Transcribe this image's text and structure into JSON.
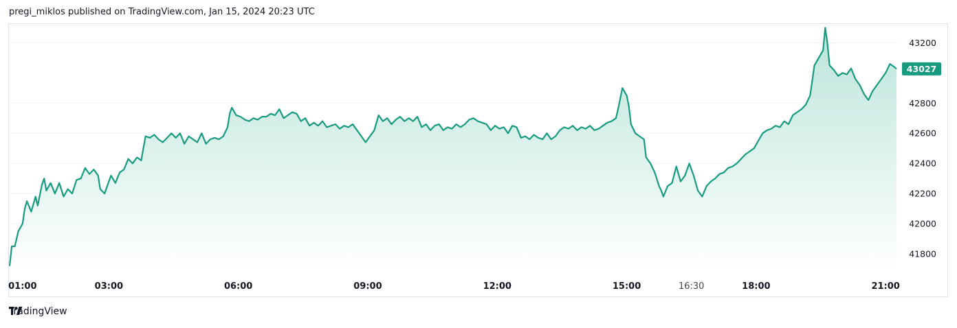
{
  "header": {
    "text": "pregi_miklos published on TradingView.com, Jan 15, 2024 20:23 UTC"
  },
  "footer": {
    "brand": "TradingView"
  },
  "colors": {
    "line": "#169a80",
    "fill_top": "#b8e4d9",
    "fill_bottom": "#ffffff",
    "price_badge": "#169a80",
    "grid": "#f0f3fa",
    "axis_text": "#131722"
  },
  "chart_data": {
    "type": "area",
    "title": "",
    "xlabel": "",
    "ylabel": "",
    "ylim": [
      41700,
      43320
    ],
    "xlim": [
      0.7,
      21.3
    ],
    "last_price": "43027",
    "y_ticks": [
      {
        "value": 41800,
        "label": "41800"
      },
      {
        "value": 42000,
        "label": "42000"
      },
      {
        "value": 42200,
        "label": "42200"
      },
      {
        "value": 42400,
        "label": "42400"
      },
      {
        "value": 42600,
        "label": "42600"
      },
      {
        "value": 42800,
        "label": "42800"
      },
      {
        "value": 43200,
        "label": "43200"
      }
    ],
    "x_ticks": [
      {
        "value": 1.0,
        "label": "01:00",
        "bold": true
      },
      {
        "value": 3.0,
        "label": "03:00",
        "bold": true
      },
      {
        "value": 6.0,
        "label": "06:00",
        "bold": true
      },
      {
        "value": 9.0,
        "label": "09:00",
        "bold": true
      },
      {
        "value": 12.0,
        "label": "12:00",
        "bold": true
      },
      {
        "value": 15.0,
        "label": "15:00",
        "bold": true
      },
      {
        "value": 16.5,
        "label": "16:30",
        "bold": false
      },
      {
        "value": 18.0,
        "label": "18:00",
        "bold": true
      },
      {
        "value": 21.0,
        "label": "21:00",
        "bold": true
      }
    ],
    "series": [
      {
        "points": [
          [
            0.7,
            41720
          ],
          [
            0.75,
            41850
          ],
          [
            0.82,
            41850
          ],
          [
            0.9,
            41950
          ],
          [
            1.0,
            42000
          ],
          [
            1.05,
            42100
          ],
          [
            1.1,
            42150
          ],
          [
            1.2,
            42080
          ],
          [
            1.3,
            42180
          ],
          [
            1.35,
            42120
          ],
          [
            1.45,
            42260
          ],
          [
            1.5,
            42300
          ],
          [
            1.55,
            42220
          ],
          [
            1.65,
            42270
          ],
          [
            1.75,
            42200
          ],
          [
            1.85,
            42270
          ],
          [
            1.95,
            42180
          ],
          [
            2.05,
            42230
          ],
          [
            2.15,
            42200
          ],
          [
            2.25,
            42290
          ],
          [
            2.35,
            42300
          ],
          [
            2.45,
            42370
          ],
          [
            2.55,
            42330
          ],
          [
            2.65,
            42360
          ],
          [
            2.75,
            42320
          ],
          [
            2.8,
            42230
          ],
          [
            2.9,
            42200
          ],
          [
            2.95,
            42240
          ],
          [
            3.05,
            42320
          ],
          [
            3.15,
            42270
          ],
          [
            3.25,
            42340
          ],
          [
            3.35,
            42360
          ],
          [
            3.45,
            42430
          ],
          [
            3.55,
            42400
          ],
          [
            3.65,
            42440
          ],
          [
            3.75,
            42420
          ],
          [
            3.85,
            42580
          ],
          [
            3.95,
            42570
          ],
          [
            4.05,
            42590
          ],
          [
            4.15,
            42560
          ],
          [
            4.25,
            42540
          ],
          [
            4.35,
            42570
          ],
          [
            4.45,
            42600
          ],
          [
            4.55,
            42570
          ],
          [
            4.65,
            42600
          ],
          [
            4.75,
            42530
          ],
          [
            4.85,
            42580
          ],
          [
            4.95,
            42560
          ],
          [
            5.05,
            42540
          ],
          [
            5.15,
            42600
          ],
          [
            5.25,
            42530
          ],
          [
            5.35,
            42560
          ],
          [
            5.45,
            42570
          ],
          [
            5.55,
            42560
          ],
          [
            5.65,
            42580
          ],
          [
            5.75,
            42640
          ],
          [
            5.8,
            42730
          ],
          [
            5.85,
            42770
          ],
          [
            5.95,
            42720
          ],
          [
            6.05,
            42710
          ],
          [
            6.15,
            42690
          ],
          [
            6.25,
            42680
          ],
          [
            6.35,
            42700
          ],
          [
            6.45,
            42690
          ],
          [
            6.55,
            42710
          ],
          [
            6.65,
            42710
          ],
          [
            6.75,
            42730
          ],
          [
            6.85,
            42720
          ],
          [
            6.95,
            42760
          ],
          [
            7.05,
            42700
          ],
          [
            7.15,
            42720
          ],
          [
            7.25,
            42740
          ],
          [
            7.35,
            42730
          ],
          [
            7.45,
            42680
          ],
          [
            7.55,
            42700
          ],
          [
            7.65,
            42650
          ],
          [
            7.75,
            42670
          ],
          [
            7.85,
            42650
          ],
          [
            7.95,
            42680
          ],
          [
            8.05,
            42640
          ],
          [
            8.15,
            42650
          ],
          [
            8.25,
            42660
          ],
          [
            8.35,
            42630
          ],
          [
            8.45,
            42650
          ],
          [
            8.55,
            42640
          ],
          [
            8.65,
            42660
          ],
          [
            8.75,
            42620
          ],
          [
            8.85,
            42580
          ],
          [
            8.95,
            42540
          ],
          [
            9.05,
            42580
          ],
          [
            9.15,
            42620
          ],
          [
            9.25,
            42720
          ],
          [
            9.35,
            42680
          ],
          [
            9.45,
            42700
          ],
          [
            9.55,
            42660
          ],
          [
            9.65,
            42690
          ],
          [
            9.75,
            42710
          ],
          [
            9.85,
            42680
          ],
          [
            9.95,
            42700
          ],
          [
            10.05,
            42680
          ],
          [
            10.15,
            42710
          ],
          [
            10.25,
            42640
          ],
          [
            10.35,
            42660
          ],
          [
            10.45,
            42620
          ],
          [
            10.55,
            42650
          ],
          [
            10.65,
            42660
          ],
          [
            10.75,
            42620
          ],
          [
            10.85,
            42640
          ],
          [
            10.95,
            42630
          ],
          [
            11.05,
            42660
          ],
          [
            11.15,
            42640
          ],
          [
            11.25,
            42660
          ],
          [
            11.35,
            42690
          ],
          [
            11.45,
            42700
          ],
          [
            11.55,
            42680
          ],
          [
            11.65,
            42670
          ],
          [
            11.75,
            42660
          ],
          [
            11.85,
            42620
          ],
          [
            11.95,
            42650
          ],
          [
            12.05,
            42630
          ],
          [
            12.15,
            42640
          ],
          [
            12.25,
            42600
          ],
          [
            12.35,
            42650
          ],
          [
            12.45,
            42640
          ],
          [
            12.55,
            42570
          ],
          [
            12.65,
            42580
          ],
          [
            12.75,
            42560
          ],
          [
            12.85,
            42590
          ],
          [
            12.95,
            42570
          ],
          [
            13.05,
            42560
          ],
          [
            13.15,
            42600
          ],
          [
            13.25,
            42560
          ],
          [
            13.35,
            42580
          ],
          [
            13.45,
            42620
          ],
          [
            13.55,
            42640
          ],
          [
            13.65,
            42630
          ],
          [
            13.75,
            42650
          ],
          [
            13.85,
            42620
          ],
          [
            13.95,
            42640
          ],
          [
            14.05,
            42630
          ],
          [
            14.15,
            42650
          ],
          [
            14.25,
            42620
          ],
          [
            14.35,
            42630
          ],
          [
            14.45,
            42650
          ],
          [
            14.55,
            42670
          ],
          [
            14.65,
            42680
          ],
          [
            14.75,
            42700
          ],
          [
            14.8,
            42760
          ],
          [
            14.85,
            42830
          ],
          [
            14.9,
            42900
          ],
          [
            15.0,
            42850
          ],
          [
            15.05,
            42780
          ],
          [
            15.1,
            42660
          ],
          [
            15.2,
            42600
          ],
          [
            15.3,
            42580
          ],
          [
            15.4,
            42560
          ],
          [
            15.45,
            42440
          ],
          [
            15.55,
            42400
          ],
          [
            15.65,
            42340
          ],
          [
            15.75,
            42250
          ],
          [
            15.8,
            42220
          ],
          [
            15.85,
            42180
          ],
          [
            15.95,
            42250
          ],
          [
            16.05,
            42270
          ],
          [
            16.15,
            42380
          ],
          [
            16.25,
            42280
          ],
          [
            16.35,
            42320
          ],
          [
            16.45,
            42400
          ],
          [
            16.55,
            42320
          ],
          [
            16.65,
            42220
          ],
          [
            16.75,
            42180
          ],
          [
            16.85,
            42250
          ],
          [
            16.95,
            42280
          ],
          [
            17.05,
            42300
          ],
          [
            17.15,
            42330
          ],
          [
            17.25,
            42340
          ],
          [
            17.35,
            42370
          ],
          [
            17.45,
            42380
          ],
          [
            17.55,
            42400
          ],
          [
            17.65,
            42430
          ],
          [
            17.75,
            42460
          ],
          [
            17.85,
            42480
          ],
          [
            17.95,
            42500
          ],
          [
            18.05,
            42550
          ],
          [
            18.15,
            42600
          ],
          [
            18.25,
            42620
          ],
          [
            18.35,
            42630
          ],
          [
            18.45,
            42650
          ],
          [
            18.55,
            42640
          ],
          [
            18.65,
            42680
          ],
          [
            18.75,
            42660
          ],
          [
            18.85,
            42720
          ],
          [
            18.95,
            42740
          ],
          [
            19.05,
            42760
          ],
          [
            19.15,
            42790
          ],
          [
            19.25,
            42850
          ],
          [
            19.3,
            42950
          ],
          [
            19.35,
            43050
          ],
          [
            19.45,
            43100
          ],
          [
            19.55,
            43150
          ],
          [
            19.6,
            43300
          ],
          [
            19.65,
            43200
          ],
          [
            19.7,
            43050
          ],
          [
            19.8,
            43020
          ],
          [
            19.9,
            42980
          ],
          [
            20.0,
            43000
          ],
          [
            20.1,
            42990
          ],
          [
            20.2,
            43030
          ],
          [
            20.3,
            42960
          ],
          [
            20.4,
            42920
          ],
          [
            20.5,
            42860
          ],
          [
            20.6,
            42820
          ],
          [
            20.7,
            42880
          ],
          [
            20.8,
            42920
          ],
          [
            20.9,
            42960
          ],
          [
            21.0,
            43000
          ],
          [
            21.1,
            43060
          ],
          [
            21.2,
            43040
          ],
          [
            21.25,
            43027
          ]
        ]
      }
    ]
  }
}
